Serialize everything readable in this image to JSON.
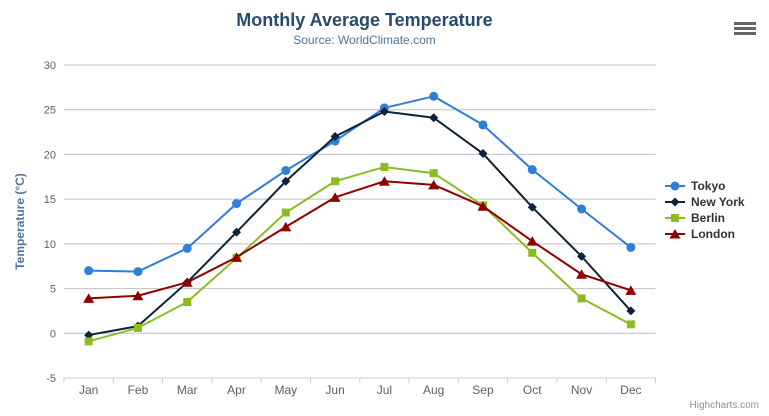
{
  "header": {
    "title": "Monthly Average Temperature",
    "subtitle": "Source: WorldClimate.com"
  },
  "export_menu": {
    "icon": "hamburger-menu-icon"
  },
  "credit": {
    "label": "Highcharts.com"
  },
  "colors": {
    "title": "#274b6d",
    "subtitle": "#4d759e",
    "axis_title": "#4d759e",
    "axis_labels": "#606060",
    "grid_line": "#c0c0c0",
    "axis_line": "#c0d0e0",
    "legend_text": "#333333",
    "credit_text": "#909090",
    "background": "#ffffff"
  },
  "chart_data": {
    "type": "line",
    "title": "Monthly Average Temperature",
    "subtitle": "Source: WorldClimate.com",
    "categories": [
      "Jan",
      "Feb",
      "Mar",
      "Apr",
      "May",
      "Jun",
      "Jul",
      "Aug",
      "Sep",
      "Oct",
      "Nov",
      "Dec"
    ],
    "xlabel": "",
    "ylabel": "Temperature (°C)",
    "ylim": [
      -5,
      30
    ],
    "yticks": [
      -5,
      0,
      5,
      10,
      15,
      20,
      25,
      30
    ],
    "grid": true,
    "legend_position": "right",
    "series": [
      {
        "name": "Tokyo",
        "color": "#2f7ed8",
        "marker": "circle",
        "values": [
          7.0,
          6.9,
          9.5,
          14.5,
          18.2,
          21.5,
          25.2,
          26.5,
          23.3,
          18.3,
          13.9,
          9.6
        ]
      },
      {
        "name": "New York",
        "color": "#0d233a",
        "marker": "diamond",
        "values": [
          -0.2,
          0.8,
          5.7,
          11.3,
          17.0,
          22.0,
          24.8,
          24.1,
          20.1,
          14.1,
          8.6,
          2.5
        ]
      },
      {
        "name": "Berlin",
        "color": "#8bbc21",
        "marker": "square",
        "values": [
          -0.9,
          0.6,
          3.5,
          8.4,
          13.5,
          17.0,
          18.6,
          17.9,
          14.3,
          9.0,
          3.9,
          1.0
        ]
      },
      {
        "name": "London",
        "color": "#910000",
        "marker": "triangle",
        "values": [
          3.9,
          4.2,
          5.7,
          8.5,
          11.9,
          15.2,
          17.0,
          16.6,
          14.2,
          10.3,
          6.6,
          4.8
        ]
      }
    ]
  }
}
